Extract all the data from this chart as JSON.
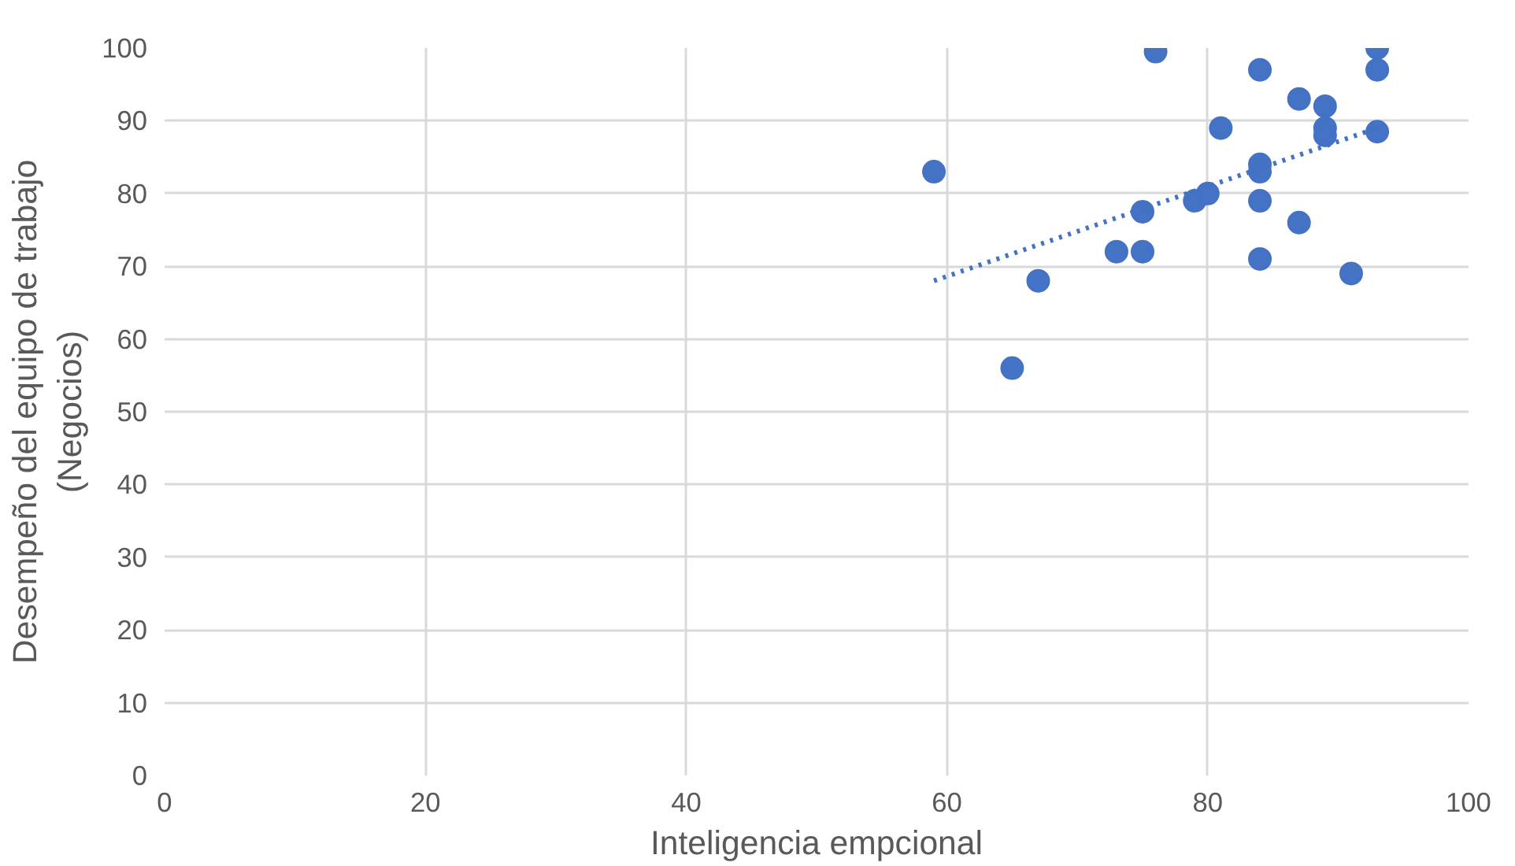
{
  "chart_data": {
    "type": "scatter",
    "xlabel": "Inteligencia empcional",
    "ylabel": "Desempeño del equipo de trabajo\n(Negocios)",
    "xlim": [
      0,
      100
    ],
    "ylim": [
      0,
      100
    ],
    "xticks": [
      0,
      20,
      40,
      60,
      80,
      100
    ],
    "yticks": [
      0,
      10,
      20,
      30,
      40,
      50,
      60,
      70,
      80,
      90,
      100
    ],
    "grid": true,
    "series": [
      {
        "color": "#4472c4",
        "marker": "circle",
        "x": [
          59,
          65,
          67,
          73,
          75,
          75,
          76,
          79,
          80,
          84,
          84,
          84,
          84,
          84,
          81,
          87,
          87,
          89,
          89,
          89,
          91,
          93,
          93,
          93
        ],
        "values": [
          83,
          56,
          68,
          72,
          72,
          77.5,
          99.5,
          79,
          80,
          97,
          84,
          83,
          79,
          71,
          89,
          93,
          76,
          92,
          89,
          88,
          69,
          100,
          97,
          88.5
        ]
      },
      {
        "type": "line",
        "color": "#4472c4",
        "line_style": "dotted",
        "x": [
          59,
          93
        ],
        "values": [
          68,
          89
        ]
      }
    ]
  }
}
